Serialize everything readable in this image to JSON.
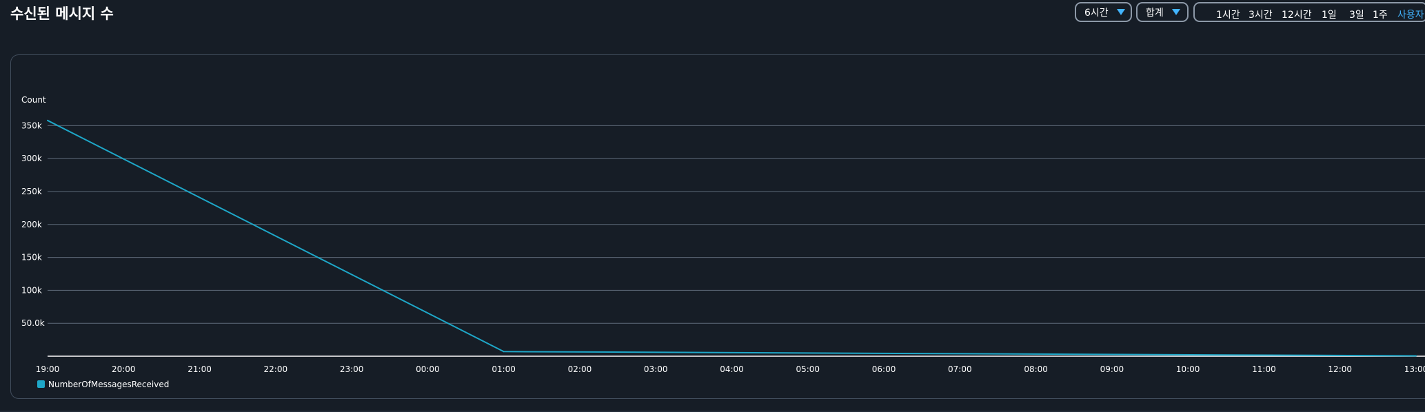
{
  "title": "수신된 메시지 수",
  "controls": {
    "period": "6시간",
    "statistic": "합계",
    "ranges": [
      "1시간",
      "3시간",
      "12시간",
      "1일",
      "3일",
      "1주",
      "사용자"
    ],
    "active_range": "사용자"
  },
  "colors": {
    "background": "#161d26",
    "accent": "#42b4ff",
    "series": "#1ea7c8",
    "grid": "#5f6b7a"
  },
  "chart_data": {
    "type": "line",
    "ylabel": "Count",
    "y_tick_labels": [
      "50.0k",
      "100k",
      "150k",
      "200k",
      "250k",
      "300k",
      "350k"
    ],
    "y_ticks": [
      50000,
      100000,
      150000,
      200000,
      250000,
      300000,
      350000
    ],
    "ylim": [
      0,
      355000
    ],
    "x_tick_labels": [
      "19:00",
      "20:00",
      "21:00",
      "22:00",
      "23:00",
      "00:00",
      "01:00",
      "02:00",
      "03:00",
      "04:00",
      "05:00",
      "06:00",
      "07:00",
      "08:00",
      "09:00",
      "10:00",
      "11:00",
      "12:00",
      "13:00"
    ],
    "grid": true,
    "legend_position": "bottom-left",
    "series": [
      {
        "name": "NumberOfMessagesReceived",
        "x": [
          "19:00",
          "01:00",
          "13:00"
        ],
        "values": [
          358000,
          7000,
          500
        ]
      }
    ]
  }
}
